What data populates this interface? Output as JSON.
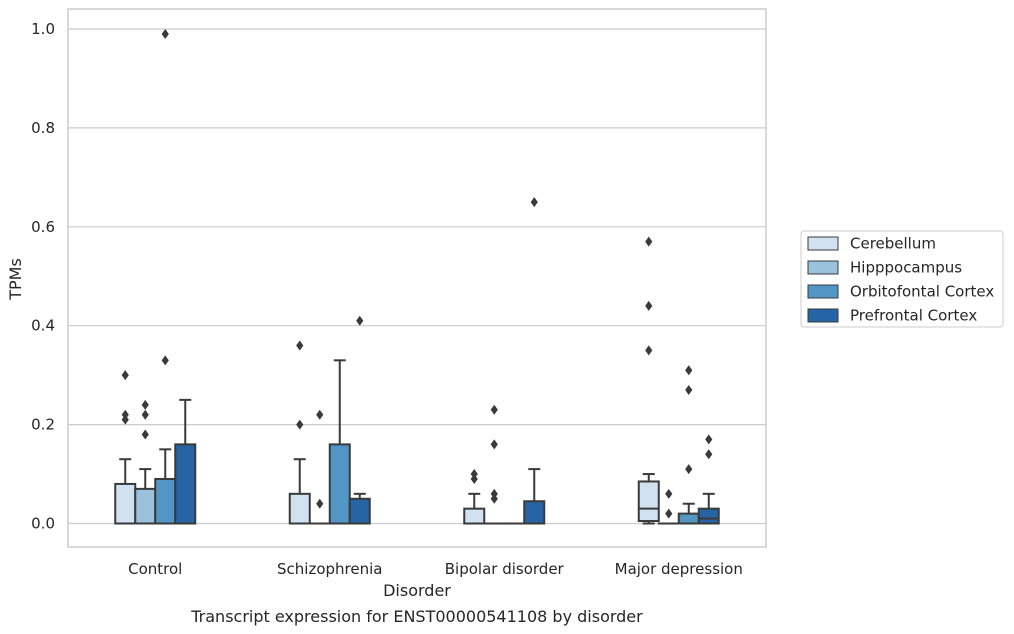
{
  "chart_data": {
    "type": "box",
    "caption": "Transcript expression for ENST00000541108 by disorder",
    "xlabel": "Disorder",
    "ylabel": "TPMs",
    "ylim": [
      -0.05,
      1.04
    ],
    "yticks": [
      "0.0",
      "0.2",
      "0.4",
      "0.6",
      "0.8",
      "1.0"
    ],
    "grid": "horizontal",
    "legend_position": "right",
    "categories": [
      "Control",
      "Schizophrenia",
      "Bipolar disorder",
      "Major depression"
    ],
    "series": [
      {
        "name": "Cerebellum",
        "color": "#d1e1f0",
        "boxes": [
          {
            "q1": 0,
            "median": 0,
            "q3": 0.08,
            "whisker_low": 0,
            "whisker_high": 0.13,
            "outliers": [
              0.21,
              0.22,
              0.3
            ]
          },
          {
            "q1": 0,
            "median": 0,
            "q3": 0.06,
            "whisker_low": 0,
            "whisker_high": 0.13,
            "outliers": [
              0.2,
              0.36
            ]
          },
          {
            "q1": 0,
            "median": 0,
            "q3": 0.03,
            "whisker_low": 0,
            "whisker_high": 0.06,
            "outliers": [
              0.09,
              0.1
            ]
          },
          {
            "q1": 0.005,
            "median": 0.03,
            "q3": 0.085,
            "whisker_low": 0,
            "whisker_high": 0.1,
            "outliers": [
              0.35,
              0.44,
              0.57
            ]
          }
        ]
      },
      {
        "name": "Hipppocampus",
        "color": "#9ac2dc",
        "boxes": [
          {
            "q1": 0,
            "median": 0,
            "q3": 0.07,
            "whisker_low": 0,
            "whisker_high": 0.11,
            "outliers": [
              0.18,
              0.22,
              0.24
            ]
          },
          {
            "q1": 0,
            "median": 0,
            "q3": 0,
            "whisker_low": 0,
            "whisker_high": 0,
            "outliers": [
              0.04,
              0.22
            ]
          },
          {
            "q1": 0,
            "median": 0,
            "q3": 0,
            "whisker_low": 0,
            "whisker_high": 0,
            "outliers": [
              0.05,
              0.06,
              0.16,
              0.23
            ]
          },
          {
            "q1": 0,
            "median": 0,
            "q3": 0,
            "whisker_low": 0,
            "whisker_high": 0,
            "outliers": [
              0.02,
              0.06
            ]
          }
        ]
      },
      {
        "name": "Orbitofontal Cortex",
        "color": "#5296c5",
        "boxes": [
          {
            "q1": 0,
            "median": 0,
            "q3": 0.09,
            "whisker_low": 0,
            "whisker_high": 0.15,
            "outliers": [
              0.33,
              0.99
            ]
          },
          {
            "q1": 0,
            "median": 0,
            "q3": 0.16,
            "whisker_low": 0,
            "whisker_high": 0.33,
            "outliers": []
          },
          {
            "q1": 0,
            "median": 0,
            "q3": 0,
            "whisker_low": 0,
            "whisker_high": 0,
            "outliers": []
          },
          {
            "q1": 0,
            "median": 0,
            "q3": 0.02,
            "whisker_low": 0,
            "whisker_high": 0.04,
            "outliers": [
              0.11,
              0.27,
              0.31
            ]
          }
        ]
      },
      {
        "name": "Prefrontal Cortex",
        "color": "#2565a5",
        "boxes": [
          {
            "q1": 0,
            "median": 0,
            "q3": 0.16,
            "whisker_low": 0,
            "whisker_high": 0.25,
            "outliers": []
          },
          {
            "q1": 0,
            "median": 0,
            "q3": 0.05,
            "whisker_low": 0,
            "whisker_high": 0.06,
            "outliers": [
              0.41
            ]
          },
          {
            "q1": 0,
            "median": 0,
            "q3": 0.045,
            "whisker_low": 0,
            "whisker_high": 0.11,
            "outliers": [
              0.65
            ]
          },
          {
            "q1": 0,
            "median": 0.01,
            "q3": 0.03,
            "whisker_low": 0,
            "whisker_high": 0.06,
            "outliers": [
              0.14,
              0.17
            ]
          }
        ]
      }
    ]
  }
}
